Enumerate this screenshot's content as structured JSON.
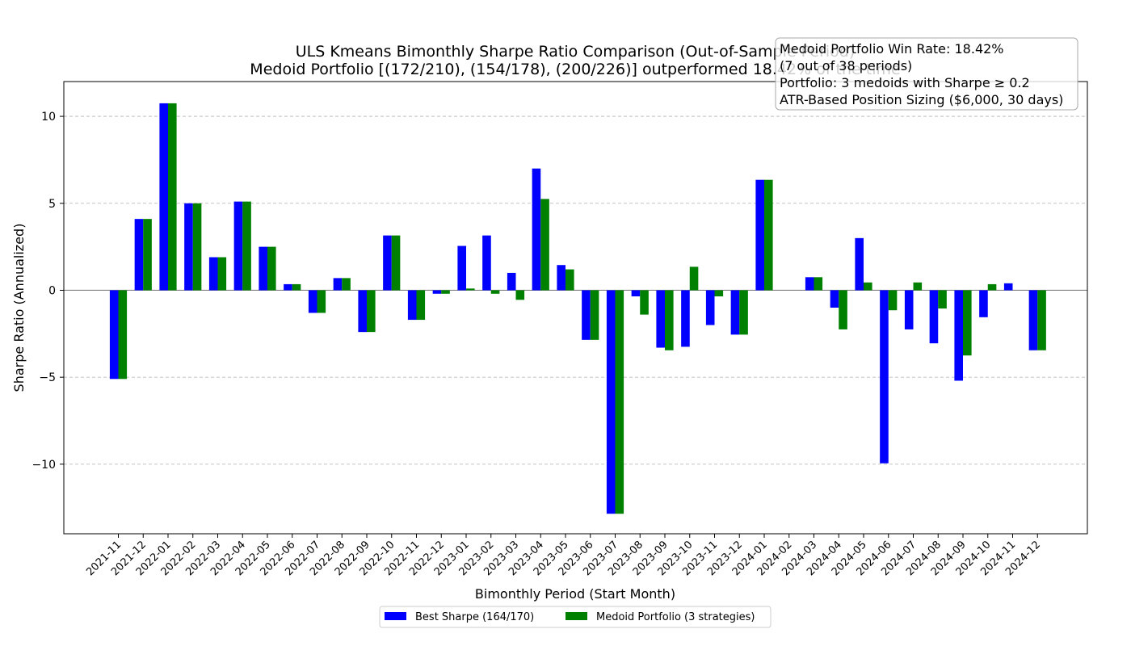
{
  "chart_data": {
    "type": "bar",
    "title": "ULS Kmeans Bimonthly Sharpe Ratio Comparison (Out-of-Sample Period)",
    "subtitle": "Medoid Portfolio [(172/210), (154/178), (200/226)] outperformed 18.42% of the time",
    "xlabel": "Bimonthly Period (Start Month)",
    "ylabel": "Sharpe Ratio (Annualized)",
    "ylim": [
      -14,
      12
    ],
    "yticks": [
      -10,
      -5,
      0,
      5,
      10
    ],
    "ytick_labels": [
      "−10",
      "−5",
      "0",
      "5",
      "10"
    ],
    "grid": "horizontal dashed",
    "legend_position": "bottom-center",
    "categories": [
      "2021-11",
      "2021-12",
      "2022-01",
      "2022-02",
      "2022-03",
      "2022-04",
      "2022-05",
      "2022-06",
      "2022-07",
      "2022-08",
      "2022-09",
      "2022-10",
      "2022-11",
      "2022-12",
      "2023-01",
      "2023-02",
      "2023-03",
      "2023-04",
      "2023-05",
      "2023-06",
      "2023-07",
      "2023-08",
      "2023-09",
      "2023-10",
      "2023-11",
      "2023-12",
      "2024-01",
      "2024-02",
      "2024-03",
      "2024-04",
      "2024-05",
      "2024-06",
      "2024-07",
      "2024-08",
      "2024-09",
      "2024-10",
      "2024-11",
      "2024-12"
    ],
    "series": [
      {
        "name": "Best Sharpe (164/170)",
        "color": "#0000ff",
        "values": [
          -5.1,
          4.1,
          10.75,
          5.0,
          1.9,
          5.1,
          2.5,
          0.35,
          -1.3,
          0.7,
          -2.4,
          3.15,
          -1.7,
          -0.2,
          2.55,
          3.15,
          1.0,
          7.0,
          1.45,
          -2.85,
          -12.85,
          -0.35,
          -3.3,
          -3.25,
          -2.0,
          -2.55,
          6.35,
          0.0,
          0.75,
          -1.0,
          3.0,
          -9.95,
          -2.25,
          -3.05,
          -5.2,
          -1.55,
          0.4,
          -3.45
        ]
      },
      {
        "name": "Medoid Portfolio (3 strategies)",
        "color": "#008000",
        "values": [
          -5.1,
          4.1,
          10.75,
          5.0,
          1.9,
          5.1,
          2.5,
          0.35,
          -1.3,
          0.7,
          -2.4,
          3.15,
          -1.7,
          -0.2,
          0.1,
          -0.2,
          -0.55,
          5.25,
          1.2,
          -2.85,
          -12.85,
          -1.4,
          -3.45,
          1.35,
          -0.35,
          -2.55,
          6.35,
          0.0,
          0.75,
          -2.25,
          0.45,
          -1.15,
          0.45,
          -1.05,
          -3.75,
          0.35,
          0.0,
          -3.45
        ]
      }
    ],
    "annotation": [
      "Medoid Portfolio Win Rate: 18.42%",
      "(7 out of 38 periods)",
      "Portfolio: 3 medoids with Sharpe ≥ 0.2",
      "ATR-Based Position Sizing ($6,000, 30 days)"
    ]
  }
}
